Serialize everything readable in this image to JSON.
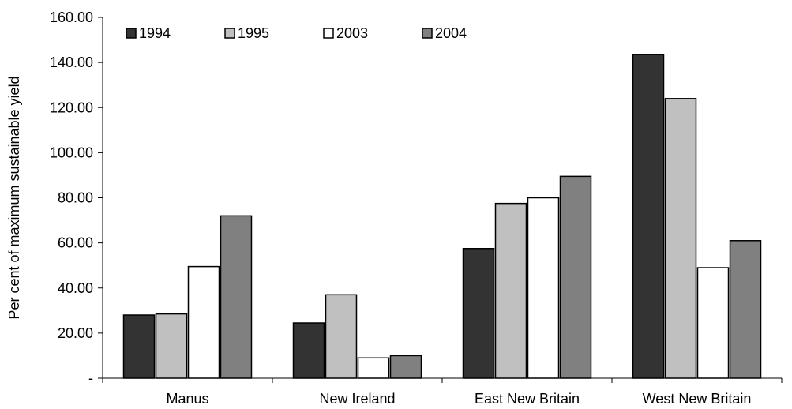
{
  "chart_data": {
    "type": "bar",
    "title": "",
    "xlabel": "",
    "ylabel": "Per cent of maximum sustainable yield",
    "ylim": [
      0,
      160
    ],
    "yticks": [
      {
        "value": 0,
        "label": "-"
      },
      {
        "value": 20,
        "label": "20.00"
      },
      {
        "value": 40,
        "label": "40.00"
      },
      {
        "value": 60,
        "label": "60.00"
      },
      {
        "value": 80,
        "label": "80.00"
      },
      {
        "value": 100,
        "label": "100.00"
      },
      {
        "value": 120,
        "label": "120.00"
      },
      {
        "value": 140,
        "label": "140.00"
      },
      {
        "value": 160,
        "label": "160.00"
      }
    ],
    "grid": false,
    "legend_position": "top-left",
    "categories": [
      "Manus",
      "New Ireland",
      "East New Britain",
      "West New Britain"
    ],
    "series": [
      {
        "name": "1994",
        "color": "#333333",
        "values": [
          28,
          24.5,
          57.5,
          143.5
        ]
      },
      {
        "name": "1995",
        "color": "#c0c0c0",
        "values": [
          28.5,
          37,
          77.5,
          124
        ]
      },
      {
        "name": "2003",
        "color": "#ffffff",
        "values": [
          49.5,
          9,
          80,
          49
        ]
      },
      {
        "name": "2004",
        "color": "#808080",
        "values": [
          72,
          10,
          89.5,
          61
        ]
      }
    ]
  }
}
